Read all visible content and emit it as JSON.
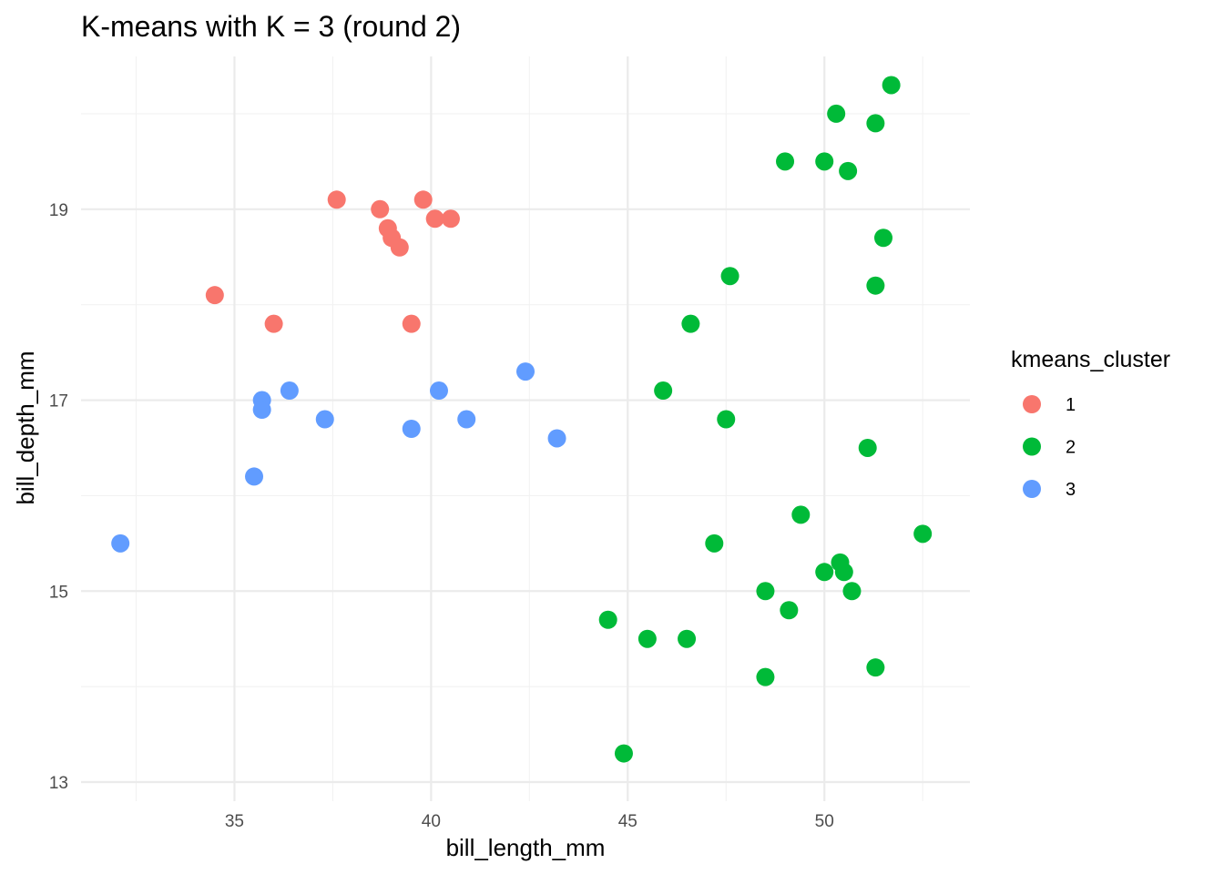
{
  "chart_data": {
    "type": "scatter",
    "title": "K-means with K = 3 (round 2)",
    "xlabel": "bill_length_mm",
    "ylabel": "bill_depth_mm",
    "xlim": [
      31.1,
      53.7
    ],
    "ylim": [
      12.8,
      20.6
    ],
    "x_ticks": [
      35,
      40,
      45,
      50
    ],
    "y_ticks": [
      13,
      15,
      17,
      19
    ],
    "x_tick_labels": [
      "35",
      "40",
      "45",
      "50"
    ],
    "y_tick_labels": [
      "13",
      "15",
      "17",
      "19"
    ],
    "grid": true,
    "legend": {
      "title": "kmeans_cluster",
      "position": "right",
      "entries": [
        {
          "label": "1",
          "color": "#f8766d"
        },
        {
          "label": "2",
          "color": "#00ba38"
        },
        {
          "label": "3",
          "color": "#619cff"
        }
      ]
    },
    "series": [
      {
        "name": "1",
        "color": "#f8766d",
        "points": [
          [
            34.5,
            18.1
          ],
          [
            36.0,
            17.8
          ],
          [
            37.6,
            19.1
          ],
          [
            38.7,
            19.0
          ],
          [
            38.9,
            18.8
          ],
          [
            39.0,
            18.7
          ],
          [
            39.2,
            18.6
          ],
          [
            39.5,
            17.8
          ],
          [
            39.8,
            19.1
          ],
          [
            40.1,
            18.9
          ],
          [
            40.5,
            18.9
          ]
        ]
      },
      {
        "name": "2",
        "color": "#00ba38",
        "points": [
          [
            44.5,
            14.7
          ],
          [
            44.9,
            13.3
          ],
          [
            45.5,
            14.5
          ],
          [
            45.9,
            17.1
          ],
          [
            46.5,
            14.5
          ],
          [
            46.6,
            17.8
          ],
          [
            47.2,
            15.5
          ],
          [
            47.5,
            16.8
          ],
          [
            47.6,
            18.3
          ],
          [
            48.5,
            15.0
          ],
          [
            48.5,
            14.1
          ],
          [
            49.0,
            19.5
          ],
          [
            49.1,
            14.8
          ],
          [
            49.4,
            15.8
          ],
          [
            50.0,
            19.5
          ],
          [
            50.0,
            15.2
          ],
          [
            50.3,
            20.0
          ],
          [
            50.4,
            15.3
          ],
          [
            50.5,
            15.2
          ],
          [
            50.6,
            19.4
          ],
          [
            50.7,
            15.0
          ],
          [
            51.1,
            16.5
          ],
          [
            51.3,
            19.9
          ],
          [
            51.3,
            18.2
          ],
          [
            51.3,
            14.2
          ],
          [
            51.5,
            18.7
          ],
          [
            51.7,
            20.3
          ],
          [
            52.5,
            15.6
          ]
        ]
      },
      {
        "name": "3",
        "color": "#619cff",
        "points": [
          [
            32.1,
            15.5
          ],
          [
            35.5,
            16.2
          ],
          [
            35.7,
            17.0
          ],
          [
            35.7,
            16.9
          ],
          [
            36.4,
            17.1
          ],
          [
            37.3,
            16.8
          ],
          [
            39.5,
            16.7
          ],
          [
            40.2,
            17.1
          ],
          [
            40.9,
            16.8
          ],
          [
            42.4,
            17.3
          ],
          [
            43.2,
            16.6
          ]
        ]
      }
    ]
  }
}
